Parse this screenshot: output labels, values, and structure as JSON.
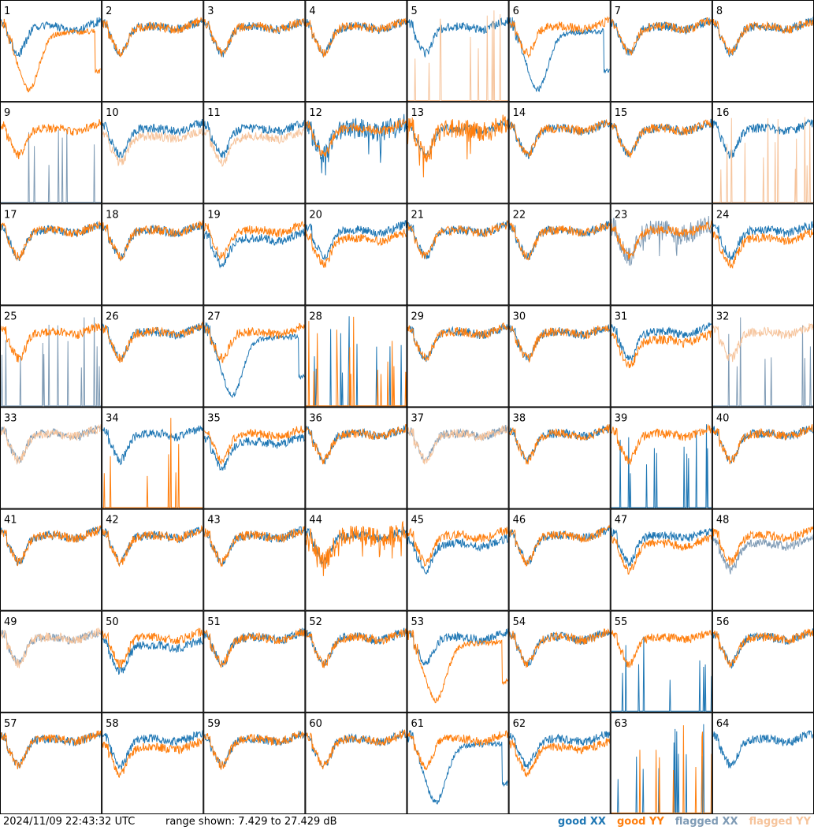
{
  "colors": {
    "good_xx": "#1f77b4",
    "good_yy": "#ff7f0e",
    "flagged_xx": "#7f9bb5",
    "flagged_yy": "#f6c49c",
    "frame": "#000000",
    "background": "#ffffff"
  },
  "footer": {
    "timestamp": "2024/11/09 22:43:32 UTC",
    "range_text": "range shown: 7.429 to 27.429 dB",
    "legend": [
      {
        "label": "good XX",
        "key": "good_xx"
      },
      {
        "label": "good YY",
        "key": "good_yy"
      },
      {
        "label": "flagged XX",
        "key": "flagged_xx"
      },
      {
        "label": "flagged YY",
        "key": "flagged_yy"
      }
    ]
  },
  "chart_data": {
    "type": "line",
    "layout": "small-multiples 8x8",
    "ylim": [
      7.429,
      27.429
    ],
    "y_unit": "dB",
    "xlabel": "",
    "ylabel": "",
    "grid": false,
    "legend_position": "bottom-right",
    "panels": [
      {
        "id": "1",
        "xx": "good",
        "yy": "good",
        "xx_shape": "normal",
        "yy_shape": "dip"
      },
      {
        "id": "2",
        "xx": "good",
        "yy": "good",
        "xx_shape": "normal",
        "yy_shape": "normal"
      },
      {
        "id": "3",
        "xx": "good",
        "yy": "good",
        "xx_shape": "normal",
        "yy_shape": "normal"
      },
      {
        "id": "4",
        "xx": "good",
        "yy": "good",
        "xx_shape": "normal",
        "yy_shape": "normal"
      },
      {
        "id": "5",
        "xx": "good",
        "yy": "flagged",
        "xx_shape": "normal",
        "yy_shape": "spikes"
      },
      {
        "id": "6",
        "xx": "good",
        "yy": "good",
        "xx_shape": "dip",
        "yy_shape": "normal"
      },
      {
        "id": "7",
        "xx": "good",
        "yy": "good",
        "xx_shape": "normal",
        "yy_shape": "normal"
      },
      {
        "id": "8",
        "xx": "good",
        "yy": "good",
        "xx_shape": "normal",
        "yy_shape": "normal"
      },
      {
        "id": "9",
        "xx": "flagged",
        "yy": "good",
        "xx_shape": "spikes",
        "yy_shape": "normal"
      },
      {
        "id": "10",
        "xx": "good",
        "yy": "flagged",
        "xx_shape": "normal",
        "yy_shape": "low"
      },
      {
        "id": "11",
        "xx": "good",
        "yy": "flagged",
        "xx_shape": "normal",
        "yy_shape": "low"
      },
      {
        "id": "12",
        "xx": "good",
        "yy": "good",
        "xx_shape": "noisy",
        "yy_shape": "normal"
      },
      {
        "id": "13",
        "xx": "good",
        "yy": "good",
        "xx_shape": "normal",
        "yy_shape": "noisy"
      },
      {
        "id": "14",
        "xx": "good",
        "yy": "good",
        "xx_shape": "normal",
        "yy_shape": "normal"
      },
      {
        "id": "15",
        "xx": "good",
        "yy": "good",
        "xx_shape": "normal",
        "yy_shape": "normal"
      },
      {
        "id": "16",
        "xx": "good",
        "yy": "flagged",
        "xx_shape": "normal",
        "yy_shape": "spikes"
      },
      {
        "id": "17",
        "xx": "good",
        "yy": "good",
        "xx_shape": "normal",
        "yy_shape": "normal"
      },
      {
        "id": "18",
        "xx": "good",
        "yy": "good",
        "xx_shape": "normal",
        "yy_shape": "normal"
      },
      {
        "id": "19",
        "xx": "good",
        "yy": "good",
        "xx_shape": "low",
        "yy_shape": "normal"
      },
      {
        "id": "20",
        "xx": "good",
        "yy": "good",
        "xx_shape": "normal",
        "yy_shape": "low"
      },
      {
        "id": "21",
        "xx": "good",
        "yy": "good",
        "xx_shape": "normal",
        "yy_shape": "normal"
      },
      {
        "id": "22",
        "xx": "good",
        "yy": "good",
        "xx_shape": "normal",
        "yy_shape": "normal"
      },
      {
        "id": "23",
        "xx": "flagged",
        "yy": "good",
        "xx_shape": "noisy",
        "yy_shape": "normal"
      },
      {
        "id": "24",
        "xx": "good",
        "yy": "good",
        "xx_shape": "normal",
        "yy_shape": "low"
      },
      {
        "id": "25",
        "xx": "flagged",
        "yy": "good",
        "xx_shape": "spikes",
        "yy_shape": "normal"
      },
      {
        "id": "26",
        "xx": "good",
        "yy": "good",
        "xx_shape": "normal",
        "yy_shape": "normal"
      },
      {
        "id": "27",
        "xx": "good",
        "yy": "good",
        "xx_shape": "dip",
        "yy_shape": "normal"
      },
      {
        "id": "28",
        "xx": "good",
        "yy": "good",
        "xx_shape": "spikes",
        "yy_shape": "spikes"
      },
      {
        "id": "29",
        "xx": "good",
        "yy": "good",
        "xx_shape": "normal",
        "yy_shape": "normal"
      },
      {
        "id": "30",
        "xx": "good",
        "yy": "good",
        "xx_shape": "normal",
        "yy_shape": "normal"
      },
      {
        "id": "31",
        "xx": "good",
        "yy": "good",
        "xx_shape": "normal",
        "yy_shape": "low"
      },
      {
        "id": "32",
        "xx": "flagged",
        "yy": "flagged",
        "xx_shape": "spikes",
        "yy_shape": "normal"
      },
      {
        "id": "33",
        "xx": "flagged",
        "yy": "flagged",
        "xx_shape": "normal",
        "yy_shape": "normal"
      },
      {
        "id": "34",
        "xx": "good",
        "yy": "good",
        "xx_shape": "normal",
        "yy_shape": "spikes"
      },
      {
        "id": "35",
        "xx": "good",
        "yy": "good",
        "xx_shape": "low",
        "yy_shape": "normal"
      },
      {
        "id": "36",
        "xx": "good",
        "yy": "good",
        "xx_shape": "normal",
        "yy_shape": "normal"
      },
      {
        "id": "37",
        "xx": "flagged",
        "yy": "flagged",
        "xx_shape": "normal",
        "yy_shape": "normal"
      },
      {
        "id": "38",
        "xx": "good",
        "yy": "good",
        "xx_shape": "normal",
        "yy_shape": "normal"
      },
      {
        "id": "39",
        "xx": "good",
        "yy": "good",
        "xx_shape": "spikes",
        "yy_shape": "normal"
      },
      {
        "id": "40",
        "xx": "good",
        "yy": "good",
        "xx_shape": "normal",
        "yy_shape": "normal"
      },
      {
        "id": "41",
        "xx": "good",
        "yy": "good",
        "xx_shape": "normal",
        "yy_shape": "normal"
      },
      {
        "id": "42",
        "xx": "good",
        "yy": "good",
        "xx_shape": "normal",
        "yy_shape": "normal"
      },
      {
        "id": "43",
        "xx": "good",
        "yy": "good",
        "xx_shape": "normal",
        "yy_shape": "normal"
      },
      {
        "id": "44",
        "xx": "good",
        "yy": "good",
        "xx_shape": "normal",
        "yy_shape": "noisy"
      },
      {
        "id": "45",
        "xx": "good",
        "yy": "good",
        "xx_shape": "low",
        "yy_shape": "normal"
      },
      {
        "id": "46",
        "xx": "good",
        "yy": "good",
        "xx_shape": "normal",
        "yy_shape": "normal"
      },
      {
        "id": "47",
        "xx": "good",
        "yy": "good",
        "xx_shape": "normal",
        "yy_shape": "low"
      },
      {
        "id": "48",
        "xx": "flagged",
        "yy": "good",
        "xx_shape": "low",
        "yy_shape": "normal"
      },
      {
        "id": "49",
        "xx": "flagged",
        "yy": "flagged",
        "xx_shape": "normal",
        "yy_shape": "normal"
      },
      {
        "id": "50",
        "xx": "good",
        "yy": "good",
        "xx_shape": "low",
        "yy_shape": "normal"
      },
      {
        "id": "51",
        "xx": "good",
        "yy": "good",
        "xx_shape": "normal",
        "yy_shape": "normal"
      },
      {
        "id": "52",
        "xx": "good",
        "yy": "good",
        "xx_shape": "normal",
        "yy_shape": "normal"
      },
      {
        "id": "53",
        "xx": "good",
        "yy": "good",
        "xx_shape": "normal",
        "yy_shape": "dip"
      },
      {
        "id": "54",
        "xx": "good",
        "yy": "good",
        "xx_shape": "normal",
        "yy_shape": "normal"
      },
      {
        "id": "55",
        "xx": "good",
        "yy": "good",
        "xx_shape": "spikes",
        "yy_shape": "normal"
      },
      {
        "id": "56",
        "xx": "good",
        "yy": "good",
        "xx_shape": "normal",
        "yy_shape": "normal"
      },
      {
        "id": "57",
        "xx": "good",
        "yy": "good",
        "xx_shape": "normal",
        "yy_shape": "normal"
      },
      {
        "id": "58",
        "xx": "good",
        "yy": "good",
        "xx_shape": "normal",
        "yy_shape": "low"
      },
      {
        "id": "59",
        "xx": "good",
        "yy": "good",
        "xx_shape": "normal",
        "yy_shape": "normal"
      },
      {
        "id": "60",
        "xx": "good",
        "yy": "good",
        "xx_shape": "normal",
        "yy_shape": "normal"
      },
      {
        "id": "61",
        "xx": "good",
        "yy": "good",
        "xx_shape": "dip",
        "yy_shape": "normal"
      },
      {
        "id": "62",
        "xx": "good",
        "yy": "good",
        "xx_shape": "normal",
        "yy_shape": "low"
      },
      {
        "id": "63",
        "xx": "good",
        "yy": "good",
        "xx_shape": "spikes",
        "yy_shape": "spikes"
      },
      {
        "id": "64",
        "xx": "good",
        "yy": "good",
        "xx_shape": "normal",
        "yy_shape": "none"
      }
    ]
  }
}
